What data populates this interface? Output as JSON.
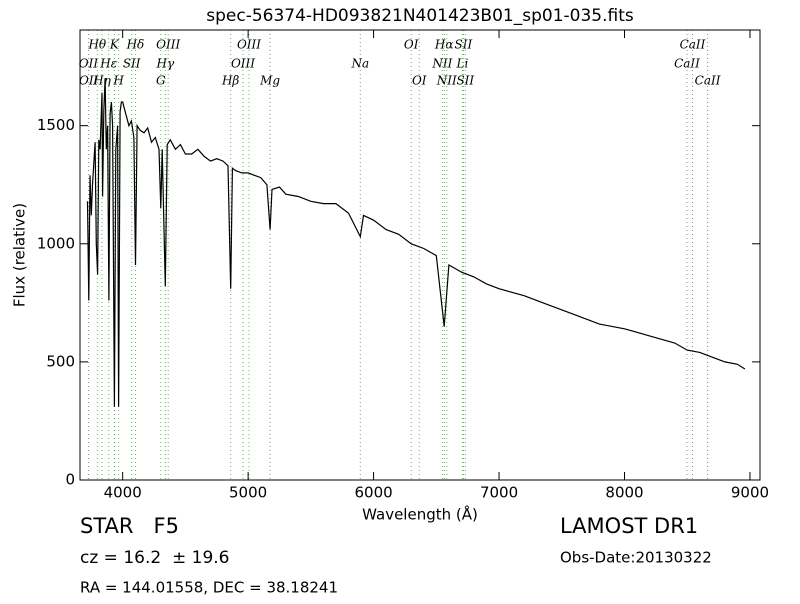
{
  "chart_data": {
    "type": "line",
    "title": "spec-56374-HD093821N401423B01_sp01-035.fits",
    "xlabel": "Wavelength (Å)",
    "ylabel": "Flux (relative)",
    "xlim": [
      3660,
      9080
    ],
    "ylim": [
      0,
      1905
    ],
    "xticks": [
      4000,
      5000,
      6000,
      7000,
      8000,
      9000
    ],
    "yticks": [
      0,
      500,
      1000,
      1500
    ],
    "x": [
      3720,
      3730,
      3740,
      3750,
      3760,
      3780,
      3790,
      3800,
      3810,
      3820,
      3835,
      3840,
      3850,
      3860,
      3870,
      3880,
      3890,
      3900,
      3910,
      3920,
      3934,
      3945,
      3960,
      3968,
      3980,
      3990,
      4000,
      4010,
      4030,
      4050,
      4070,
      4090,
      4102,
      4115,
      4140,
      4170,
      4200,
      4230,
      4260,
      4290,
      4304,
      4315,
      4340,
      4355,
      4380,
      4420,
      4460,
      4500,
      4550,
      4600,
      4650,
      4700,
      4750,
      4800,
      4840,
      4861,
      4875,
      4900,
      4950,
      5000,
      5050,
      5100,
      5150,
      5175,
      5190,
      5250,
      5300,
      5400,
      5500,
      5600,
      5700,
      5800,
      5894,
      5920,
      6000,
      6100,
      6200,
      6300,
      6400,
      6500,
      6563,
      6600,
      6700,
      6800,
      6900,
      7000,
      7200,
      7400,
      7600,
      7800,
      8000,
      8200,
      8400,
      8500,
      8600,
      8700,
      8800,
      8900,
      8960
    ],
    "series": [
      {
        "color": "#000000",
        "values": [
          1180,
          760,
          1290,
          1120,
          1250,
          1430,
          1000,
          870,
          1440,
          1400,
          1640,
          1200,
          1560,
          1700,
          1400,
          1500,
          760,
          1550,
          1600,
          1500,
          310,
          1400,
          1500,
          310,
          1560,
          1600,
          1600,
          1580,
          1540,
          1500,
          1520,
          1450,
          910,
          1500,
          1480,
          1470,
          1490,
          1430,
          1450,
          1400,
          1150,
          1400,
          820,
          1420,
          1440,
          1400,
          1420,
          1380,
          1380,
          1400,
          1370,
          1350,
          1360,
          1350,
          1330,
          810,
          1320,
          1310,
          1300,
          1300,
          1290,
          1280,
          1250,
          1060,
          1230,
          1240,
          1210,
          1200,
          1180,
          1170,
          1170,
          1130,
          1030,
          1120,
          1100,
          1060,
          1040,
          1000,
          980,
          950,
          650,
          910,
          880,
          860,
          830,
          810,
          780,
          740,
          700,
          660,
          640,
          610,
          580,
          550,
          540,
          520,
          500,
          490,
          470
        ]
      }
    ],
    "line_marker_color": "#5cb85c",
    "spectral_lines": [
      {
        "wavelength": 3727,
        "label": "OII"
      },
      {
        "wavelength": 3729,
        "label": "OII"
      },
      {
        "wavelength": 3798,
        "label": "Hθ"
      },
      {
        "wavelength": 3835,
        "label": "Hη"
      },
      {
        "wavelength": 3889,
        "label": "Hε"
      },
      {
        "wavelength": 3934,
        "label": "K"
      },
      {
        "wavelength": 3968,
        "label": "H"
      },
      {
        "wavelength": 4072,
        "label": "SII"
      },
      {
        "wavelength": 4102,
        "label": "Hδ"
      },
      {
        "wavelength": 4304,
        "label": "G"
      },
      {
        "wavelength": 4340,
        "label": "Hγ"
      },
      {
        "wavelength": 4363,
        "label": "OIII"
      },
      {
        "wavelength": 4861,
        "label": "Hβ"
      },
      {
        "wavelength": 4959,
        "label": "OIII"
      },
      {
        "wavelength": 5007,
        "label": "OIII"
      },
      {
        "wavelength": 5175,
        "label": "Mg"
      },
      {
        "wavelength": 5894,
        "label": "Na"
      },
      {
        "wavelength": 6300,
        "label": "OI"
      },
      {
        "wavelength": 6364,
        "label": "OI"
      },
      {
        "wavelength": 6548,
        "label": "NII"
      },
      {
        "wavelength": 6563,
        "label": "Hα"
      },
      {
        "wavelength": 6583,
        "label": "NII"
      },
      {
        "wavelength": 6708,
        "label": "Li"
      },
      {
        "wavelength": 6716,
        "label": "SII"
      },
      {
        "wavelength": 6731,
        "label": "SII"
      },
      {
        "wavelength": 8498,
        "label": "CaII"
      },
      {
        "wavelength": 8542,
        "label": "CaII"
      },
      {
        "wavelength": 8662,
        "label": "CaII"
      }
    ],
    "object_class": "STAR   F5",
    "redshift": "cz = 16.2  ± 19.6",
    "coordinates": "RA = 144.01558, DEC = 38.18241",
    "release": "LAMOST DR1",
    "obs_date": "Obs-Date:20130322"
  }
}
